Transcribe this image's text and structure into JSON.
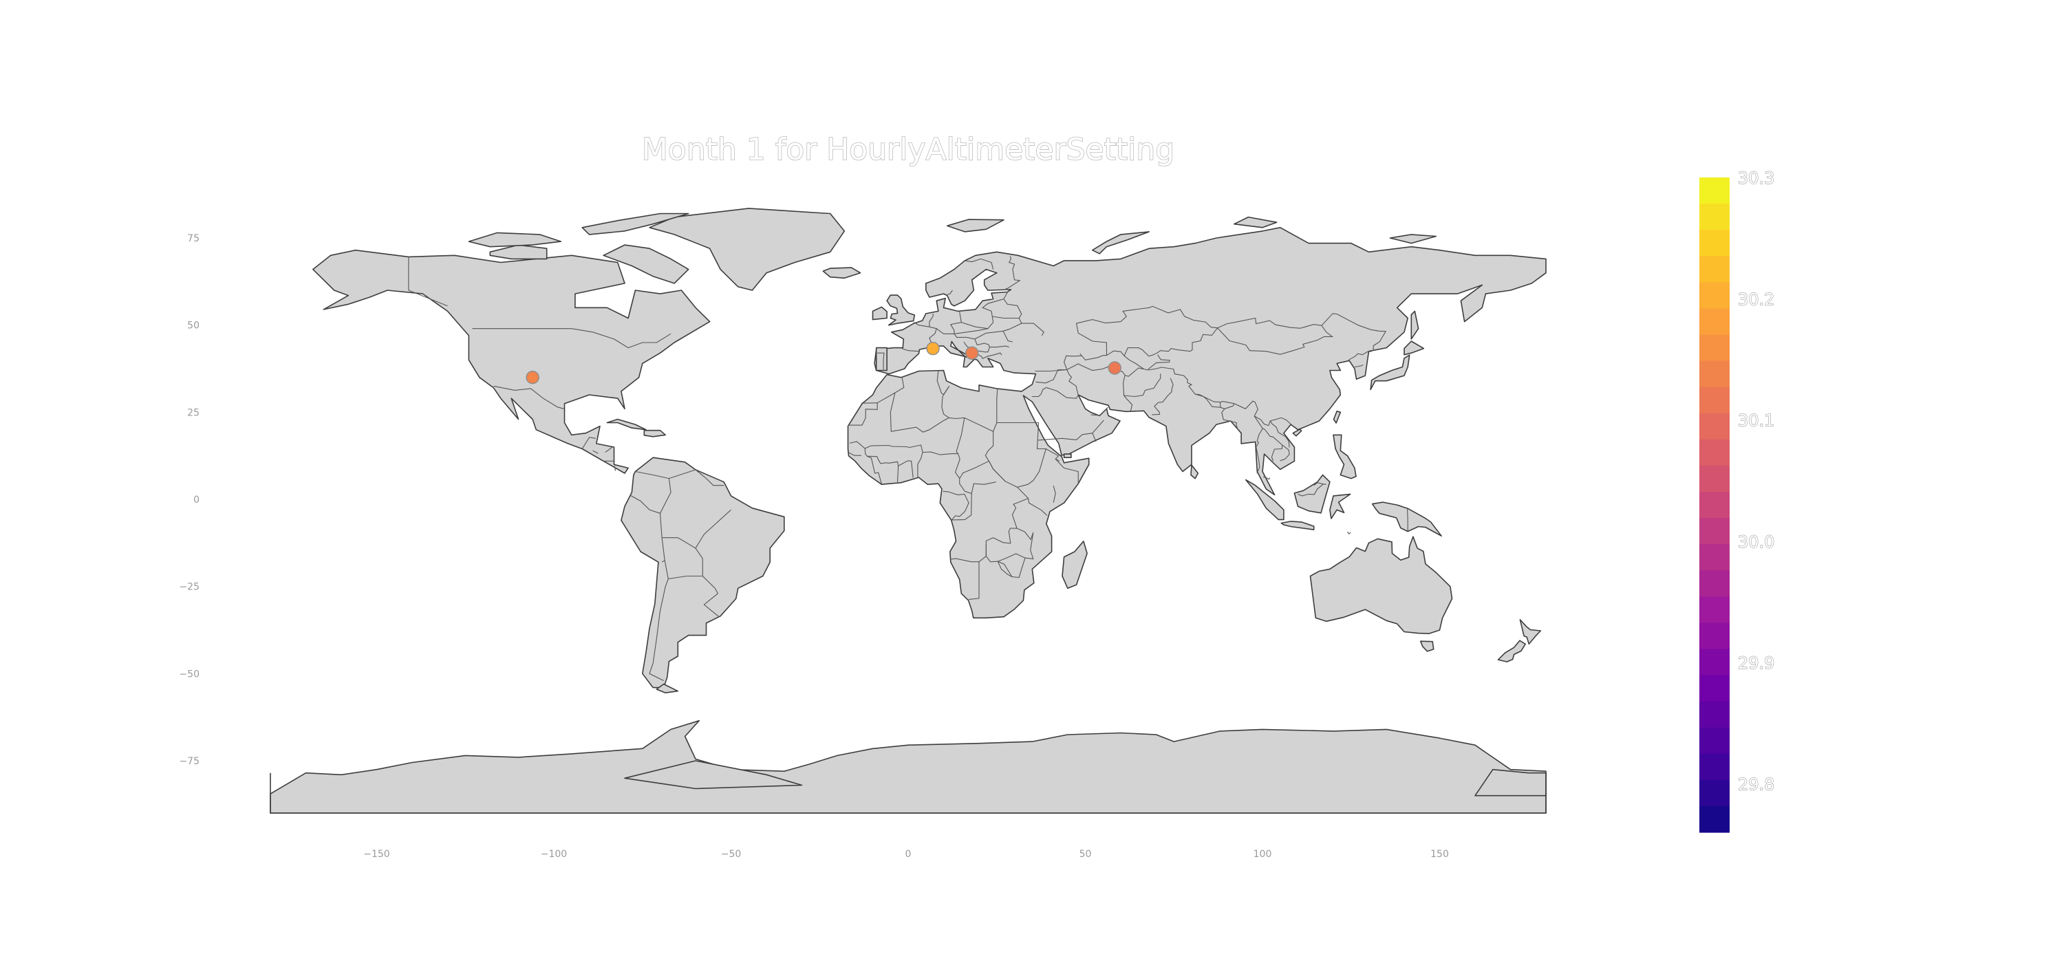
{
  "chart_data": {
    "type": "scatter",
    "title": "Month 1 for HourlyAltimeterSetting",
    "map_projection": "equirectangular",
    "basemap": "world countries",
    "land_color": "#d3d3d3",
    "xlim": [
      -180,
      180
    ],
    "ylim": [
      -90,
      90
    ],
    "x_ticks": [
      -150,
      -100,
      -50,
      0,
      50,
      100,
      150
    ],
    "x_tick_labels": [
      "−150",
      "−100",
      "−50",
      "0",
      "50",
      "100",
      "150"
    ],
    "y_ticks": [
      75,
      50,
      25,
      0,
      -25,
      -50,
      -75
    ],
    "y_tick_labels": [
      "75",
      "50",
      "25",
      "0",
      "−25",
      "−50",
      "−75"
    ],
    "points": [
      {
        "lon": -106.0,
        "lat": 35.0,
        "value": 30.14
      },
      {
        "lon": 7.0,
        "lat": 43.3,
        "value": 30.2
      },
      {
        "lon": 18.0,
        "lat": 42.0,
        "value": 30.13
      },
      {
        "lon": 58.3,
        "lat": 37.7,
        "value": 30.12
      }
    ],
    "colorscale": "plasma",
    "colorscale_stops": [
      "#0d0887",
      "#46039f",
      "#7201a8",
      "#9c179e",
      "#bd3786",
      "#d8576b",
      "#ed7953",
      "#fb9f3a",
      "#fdca26",
      "#f0f921"
    ],
    "color_range": [
      29.76,
      30.3
    ],
    "colorbar_ticks": [
      30.3,
      30.2,
      30.1,
      30.0,
      29.9,
      29.8
    ],
    "colorbar_tick_labels": [
      "30.3",
      "30.2",
      "30.1",
      "30.0",
      "29.9",
      "29.8"
    ]
  }
}
